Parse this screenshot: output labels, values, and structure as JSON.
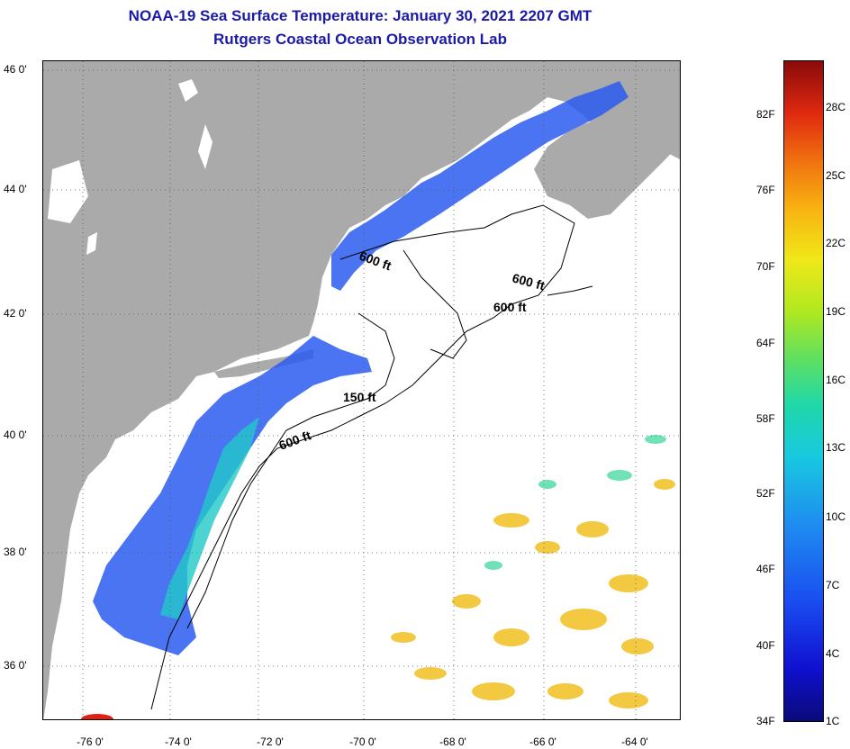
{
  "title": {
    "line1": "NOAA-19 Sea Surface Temperature:  January 30, 2021 2207 GMT",
    "line2": "Rutgers Coastal Ocean Observation Lab"
  },
  "map": {
    "lat_ticks": [
      "46 0'",
      "44 0'",
      "42 0'",
      "40 0'",
      "38 0'",
      "36 0'"
    ],
    "lon_ticks": [
      "-76 0'",
      "-74 0'",
      "-72 0'",
      "-70 0'",
      "-68 0'",
      "-66 0'",
      "-64 0'"
    ],
    "contour_labels": [
      "600 ft",
      "600 ft",
      "600 ft",
      "150 ft",
      "600 ft"
    ],
    "colors": {
      "land": "#aaaaaa",
      "ocean": "#ffffff",
      "cold": "#1e50f0",
      "mid": "#20d0c0",
      "warm": "#f0c020"
    }
  },
  "colorbar": {
    "fahrenheit": [
      "82F",
      "76F",
      "70F",
      "64F",
      "58F",
      "52F",
      "46F",
      "40F",
      "34F"
    ],
    "celsius": [
      "28C",
      "25C",
      "22C",
      "19C",
      "16C",
      "13C",
      "10C",
      "7C",
      "4C",
      "1C"
    ]
  }
}
